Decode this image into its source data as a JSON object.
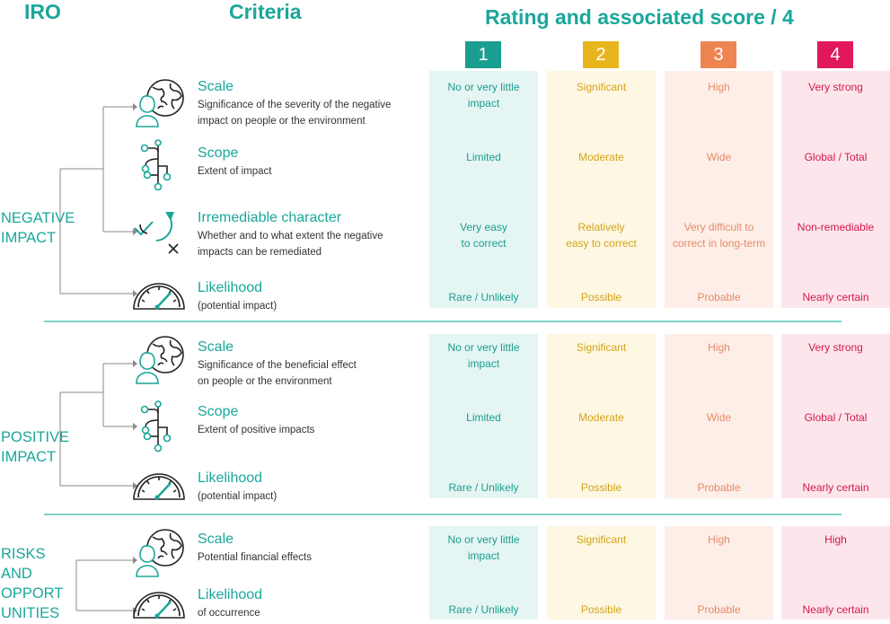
{
  "header": {
    "iro": "IRO",
    "criteria": "Criteria",
    "rating": "Rating and associated score / 4"
  },
  "scores": [
    {
      "label": "1",
      "color": "#1a9e8f"
    },
    {
      "label": "2",
      "color": "#e8b51d"
    },
    {
      "label": "3",
      "color": "#ef8453"
    },
    {
      "label": "4",
      "color": "#e1195a"
    }
  ],
  "column_styles": [
    {
      "bg": "#e5f5f3",
      "text": "#1a9e8f"
    },
    {
      "bg": "#fdf7e3",
      "text": "#d4a51a"
    },
    {
      "bg": "#fdeee8",
      "text": "#e88a68"
    },
    {
      "bg": "#fce6ec",
      "text": "#d4174f"
    }
  ],
  "groups": [
    {
      "label_lines": [
        "NEGATIVE",
        "IMPACT"
      ],
      "criteria": [
        {
          "icon": "globe-person-icon",
          "title": "Scale",
          "desc": [
            "Significance of the severity of the negative",
            "impact on people or the environment"
          ],
          "ratings": [
            [
              "No or very little",
              "impact"
            ],
            [
              "Significant"
            ],
            [
              "High"
            ],
            [
              "Very strong"
            ]
          ]
        },
        {
          "icon": "branch-icon",
          "title": "Scope",
          "desc": [
            "Extent of impact"
          ],
          "ratings": [
            [
              "Limited"
            ],
            [
              "Moderate"
            ],
            [
              "Wide"
            ],
            [
              "Global / Total"
            ]
          ]
        },
        {
          "icon": "remediation-icon",
          "title": "Irremediable character",
          "desc": [
            "Whether and to what extent the negative",
            "impacts can be remediated"
          ],
          "ratings": [
            [
              "Very easy",
              "to correct"
            ],
            [
              "Relatively",
              "easy to correct"
            ],
            [
              "Very difficult to",
              "correct in long-term"
            ],
            [
              "Non-remediable"
            ]
          ]
        },
        {
          "icon": "gauge-icon",
          "title": "Likelihood",
          "desc": [
            "(potential impact)"
          ],
          "ratings": [
            [
              "Rare / Unlikely"
            ],
            [
              "Possible"
            ],
            [
              "Probable"
            ],
            [
              "Nearly certain"
            ]
          ]
        }
      ]
    },
    {
      "label_lines": [
        "POSITIVE",
        "IMPACT"
      ],
      "criteria": [
        {
          "icon": "globe-person-icon",
          "title": "Scale",
          "desc": [
            "Significance of the beneficial effect",
            "on people or the environment"
          ],
          "ratings": [
            [
              "No or very little",
              "impact"
            ],
            [
              "Significant"
            ],
            [
              "High"
            ],
            [
              "Very strong"
            ]
          ]
        },
        {
          "icon": "branch-icon",
          "title": "Scope",
          "desc": [
            "Extent of positive impacts"
          ],
          "ratings": [
            [
              "Limited"
            ],
            [
              "Moderate"
            ],
            [
              "Wide"
            ],
            [
              "Global / Total"
            ]
          ]
        },
        {
          "icon": "gauge-icon",
          "title": "Likelihood",
          "desc": [
            "(potential impact)"
          ],
          "ratings": [
            [
              "Rare / Unlikely"
            ],
            [
              "Possible"
            ],
            [
              "Probable"
            ],
            [
              "Nearly certain"
            ]
          ]
        }
      ]
    },
    {
      "label_lines": [
        "RISKS",
        "AND",
        "OPPORT",
        "UNITIES"
      ],
      "criteria": [
        {
          "icon": "globe-person-icon",
          "title": "Scale",
          "desc": [
            "Potential financial effects"
          ],
          "ratings": [
            [
              "No or very little",
              "impact"
            ],
            [
              "Significant"
            ],
            [
              "High"
            ],
            [
              "High"
            ]
          ]
        },
        {
          "icon": "gauge-icon",
          "title": "Likelihood",
          "desc": [
            "of occurrence"
          ],
          "ratings": [
            [
              "Rare / Unlikely"
            ],
            [
              "Possible"
            ],
            [
              "Probable"
            ],
            [
              "Nearly certain"
            ]
          ]
        }
      ]
    }
  ]
}
